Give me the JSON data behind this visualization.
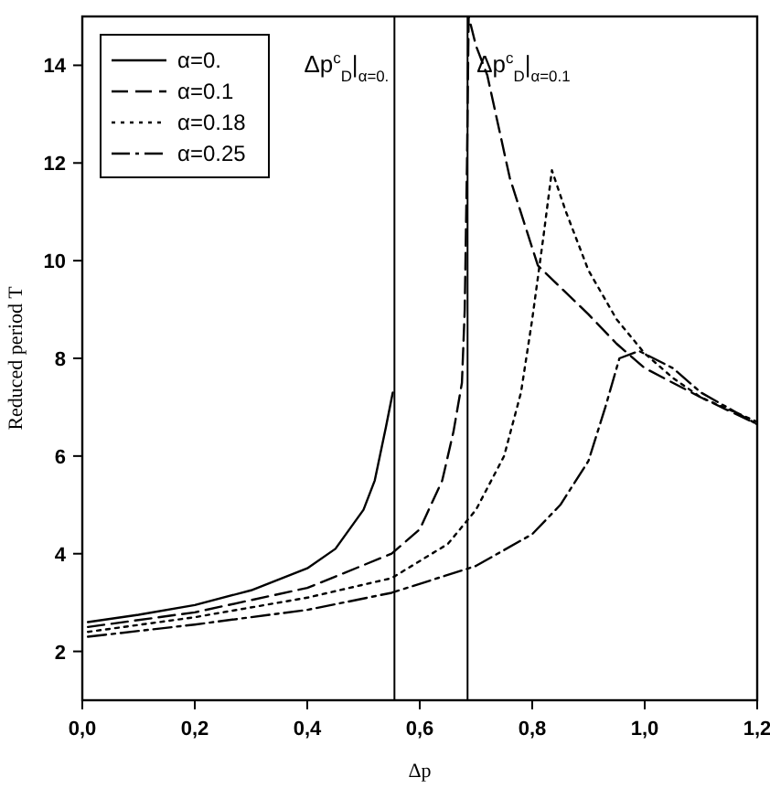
{
  "chart_data": {
    "type": "line",
    "xlabel": "Δp",
    "ylabel": "Reduced period T",
    "xlim": [
      0,
      1.2
    ],
    "ylim": [
      1,
      15
    ],
    "xticks": [
      {
        "value": 0,
        "label": "0,0"
      },
      {
        "value": 0.2,
        "label": "0,2"
      },
      {
        "value": 0.4,
        "label": "0,4"
      },
      {
        "value": 0.6,
        "label": "0,6"
      },
      {
        "value": 0.8,
        "label": "0,8"
      },
      {
        "value": 1.0,
        "label": "1,0"
      },
      {
        "value": 1.2,
        "label": "1,2"
      }
    ],
    "yticks": [
      2,
      4,
      6,
      8,
      10,
      12,
      14
    ],
    "grid": false,
    "legend": "top left",
    "ref_lines": [
      {
        "axis": "x",
        "value": 0.555,
        "color": "#000000",
        "line_style": "solid"
      },
      {
        "axis": "x",
        "value": 0.685,
        "color": "#000000",
        "line_style": "solid"
      }
    ],
    "annotations": [
      {
        "text": "Δp$^{c}$$_{D}$|$_{α=0.}$",
        "x": 0.555,
        "y": 14
      },
      {
        "text": "Δp$^{c}$$_{D}$|$_{α=0.1}$",
        "x": 0.685,
        "y": 14
      }
    ],
    "series": [
      {
        "name": "α=0.",
        "color": "#000000",
        "line_style": "solid",
        "x": [
          0.01,
          0.1,
          0.2,
          0.3,
          0.4,
          0.45,
          0.5,
          0.52,
          0.54,
          0.552
        ],
        "values": [
          2.6,
          2.75,
          2.95,
          3.25,
          3.7,
          4.1,
          4.9,
          5.5,
          6.6,
          7.3
        ]
      },
      {
        "name": "α=0.1",
        "color": "#000000",
        "line_style": "dashed",
        "x": [
          0.01,
          0.2,
          0.4,
          0.55,
          0.6,
          0.64,
          0.66,
          0.675,
          0.68,
          0.684,
          0.687,
          0.7,
          0.72,
          0.76,
          0.81,
          0.9,
          0.95,
          1.0,
          1.1,
          1.2
        ],
        "values": [
          2.5,
          2.8,
          3.3,
          4.0,
          4.5,
          5.5,
          6.5,
          7.5,
          9,
          12,
          15,
          14.4,
          13.8,
          11.7,
          9.9,
          8.9,
          8.3,
          7.8,
          7.2,
          6.65
        ]
      },
      {
        "name": "α=0.18",
        "color": "#000000",
        "line_style": "dotted",
        "x": [
          0.01,
          0.2,
          0.4,
          0.55,
          0.65,
          0.7,
          0.75,
          0.78,
          0.8,
          0.82,
          0.835,
          0.86,
          0.9,
          0.95,
          1.0,
          1.05,
          1.1,
          1.2
        ],
        "values": [
          2.4,
          2.7,
          3.1,
          3.5,
          4.2,
          4.9,
          6.0,
          7.3,
          8.8,
          10.5,
          11.85,
          11.0,
          9.8,
          8.8,
          8.1,
          7.6,
          7.2,
          6.7
        ]
      },
      {
        "name": "α=0.25",
        "color": "#000000",
        "line_style": "dashdot",
        "x": [
          0.01,
          0.2,
          0.4,
          0.55,
          0.7,
          0.8,
          0.85,
          0.9,
          0.93,
          0.955,
          0.99,
          1.05,
          1.1,
          1.2
        ],
        "values": [
          2.3,
          2.55,
          2.85,
          3.2,
          3.75,
          4.4,
          5.0,
          5.9,
          7.0,
          8.0,
          8.15,
          7.8,
          7.3,
          6.65
        ]
      }
    ]
  }
}
